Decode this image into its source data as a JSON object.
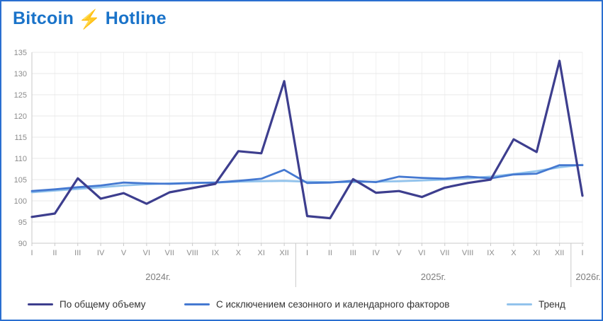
{
  "header": {
    "brand_left": "Bitcoin",
    "brand_right": "Hotline",
    "bolt_icon": "⚡",
    "brand_color": "#1a73c9",
    "bolt_color": "#f7a61b"
  },
  "window": {
    "border_color": "#2a6fd0",
    "background": "#ffffff"
  },
  "chart_data": {
    "type": "line",
    "title": "",
    "xlabel": "",
    "ylabel": "",
    "ylim": [
      90,
      135
    ],
    "ytick_step": 5,
    "grid": true,
    "legend_position": "bottom",
    "axis_text_color": "#8c8c8c",
    "year_text_color": "#7d7d7d",
    "grid_color": "#e8e8e8",
    "minor_grid_color": "#f0f0f0",
    "axis_line_color": "#c9c9c9",
    "categories": [
      "I",
      "II",
      "III",
      "IV",
      "V",
      "VI",
      "VII",
      "VIII",
      "IX",
      "X",
      "XI",
      "XII",
      "I",
      "II",
      "III",
      "IV",
      "V",
      "VI",
      "VII",
      "VIII",
      "IX",
      "X",
      "XI",
      "XII",
      "I"
    ],
    "year_groups": [
      {
        "label": "2024г.",
        "from": 0,
        "to": 11
      },
      {
        "label": "2025г.",
        "from": 12,
        "to": 23
      },
      {
        "label": "2026г.",
        "from": 24,
        "to": 24
      }
    ],
    "yticks": [
      90,
      95,
      100,
      105,
      110,
      115,
      120,
      125,
      130,
      135
    ],
    "series": [
      {
        "name": "По общему объему",
        "color": "#3d3e8e",
        "width": 3.2,
        "values": [
          96.2,
          97.0,
          105.3,
          100.5,
          101.8,
          99.3,
          102.0,
          103.0,
          104.0,
          111.7,
          111.2,
          128.2,
          96.4,
          95.9,
          105.1,
          101.9,
          102.3,
          100.9,
          103.1,
          104.2,
          105.0,
          114.5,
          111.5,
          133.0,
          101.2
        ]
      },
      {
        "name": "С исключением сезонного и календарного факторов",
        "color": "#4579d1",
        "width": 2.8,
        "values": [
          102.3,
          102.7,
          103.2,
          103.6,
          104.3,
          104.1,
          104.0,
          104.2,
          104.3,
          104.7,
          105.2,
          107.3,
          104.2,
          104.3,
          104.7,
          104.4,
          105.7,
          105.4,
          105.2,
          105.7,
          105.3,
          106.2,
          106.4,
          108.4,
          108.4
        ]
      },
      {
        "name": "Тренд",
        "color": "#92c3ec",
        "width": 2.8,
        "values": [
          102.0,
          102.4,
          102.8,
          103.2,
          103.6,
          103.9,
          104.1,
          104.2,
          104.3,
          104.5,
          104.6,
          104.7,
          104.5,
          104.4,
          104.4,
          104.5,
          104.6,
          104.8,
          105.0,
          105.3,
          105.7,
          106.3,
          107.0,
          107.9,
          108.5
        ]
      }
    ]
  }
}
